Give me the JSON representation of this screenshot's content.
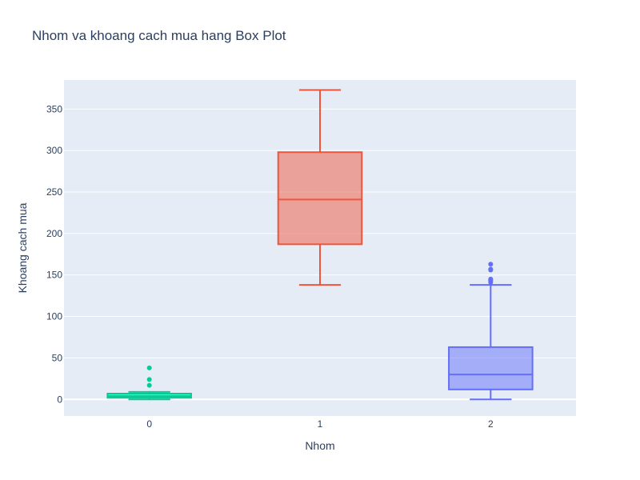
{
  "chart_data": {
    "type": "box",
    "title": "Nhom va khoang cach mua hang Box Plot",
    "xlabel": "Nhom",
    "ylabel": "Khoang cach mua",
    "categories": [
      "0",
      "1",
      "2"
    ],
    "ylim": [
      -20,
      385
    ],
    "yticks": [
      0,
      50,
      100,
      150,
      200,
      250,
      300,
      350
    ],
    "grid": true,
    "legend": "none",
    "series": [
      {
        "category": "0",
        "color": "#00cc96",
        "min": 0,
        "q1": 2,
        "median": 4,
        "q3": 7,
        "max": 9,
        "outliers": [
          17,
          24,
          38
        ]
      },
      {
        "category": "1",
        "color": "#ef553b",
        "min": 138,
        "q1": 187,
        "median": 241,
        "q3": 298,
        "max": 373,
        "outliers": []
      },
      {
        "category": "2",
        "color": "#636efa",
        "min": 0,
        "q1": 12,
        "median": 30,
        "q3": 63,
        "max": 138,
        "outliers": [
          141,
          143,
          144,
          145,
          156,
          157,
          163
        ]
      }
    ]
  }
}
